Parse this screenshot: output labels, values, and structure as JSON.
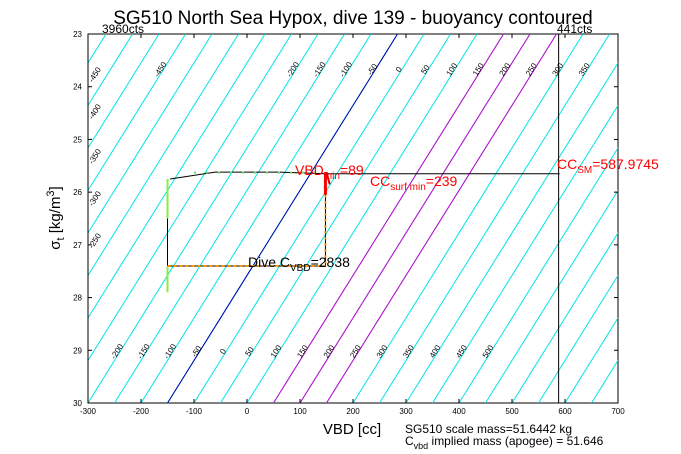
{
  "chart_data": {
    "type": "contour",
    "title": "SG510 North Sea Hypox, dive 139 - buoyancy contoured",
    "xlabel": "VBD [cc]",
    "ylabel": {
      "main": "σ",
      "sub": "t",
      "rest": " [kg/m",
      "sup": "3",
      "end": "]"
    },
    "xlim": [
      -300,
      700
    ],
    "ylim": [
      23,
      30
    ],
    "y_reversed": true,
    "xticks": [
      -300,
      -200,
      -100,
      0,
      100,
      200,
      300,
      400,
      500,
      600,
      700
    ],
    "yticks": [
      23,
      24,
      25,
      26,
      27,
      28,
      29,
      30
    ],
    "corner_labels": {
      "top_left": "3960cts",
      "top_right": "441cts"
    },
    "buoyancy_contours": {
      "color": "#00e5e5",
      "levels": [
        -500,
        -450,
        -400,
        -350,
        -300,
        -250,
        -200,
        -150,
        -100,
        -50,
        0,
        50,
        100,
        150,
        200,
        250,
        300,
        350,
        400,
        450,
        500
      ],
      "top_labels": [
        "-450",
        "-200",
        "-150",
        "-100",
        "-50",
        "0",
        "50",
        "100",
        "150",
        "200",
        "250",
        "300",
        "350",
        "400",
        "450",
        "500"
      ],
      "left_labels": [
        "-450",
        "-400",
        "-350",
        "-300",
        "-250"
      ],
      "bottom_labels": [
        "-200",
        "-150",
        "-100",
        "-50",
        "0",
        "50",
        "100",
        "150",
        "200",
        "250",
        "300",
        "350",
        "400",
        "450",
        "500"
      ]
    },
    "highlight_contours": {
      "blue": {
        "color": "#0000b0"
      },
      "magenta": {
        "color": "#cc00cc",
        "count": 3
      }
    },
    "vertical_lines": [
      {
        "x": -300,
        "color": "#000000"
      },
      {
        "x": 587.9745,
        "color": "#000000"
      }
    ],
    "dive_path": {
      "color": "#000000",
      "points": [
        [
          -145,
          25.75
        ],
        [
          -60,
          25.62
        ],
        [
          60,
          25.62
        ],
        [
          148,
          25.65
        ],
        [
          590,
          25.65
        ],
        [
          148,
          25.65
        ],
        [
          148,
          27.4
        ],
        [
          -150,
          27.4
        ],
        [
          -150,
          25.75
        ]
      ]
    },
    "annotations": [
      {
        "id": "vbd_min",
        "main": "VBD",
        "sub": "min",
        "value": "=89",
        "color": "#ff0000"
      },
      {
        "id": "cc_surf",
        "main": "CC",
        "sub": "surf min",
        "value": "=239",
        "color": "#ff0000"
      },
      {
        "id": "cc_sm",
        "main": "CC",
        "sub": "SM",
        "value": "=587.9745",
        "color": "#ff0000"
      },
      {
        "id": "dive_c",
        "main": "Dive C",
        "sub": "VBD",
        "value": "=2838",
        "color": "#000000"
      }
    ],
    "footer": {
      "line1": "SG510 scale mass=51.6442 kg",
      "line2_main": "C",
      "line2_sub": "vbd",
      "line2_rest": " implied mass (apogee) = 51.646"
    }
  }
}
